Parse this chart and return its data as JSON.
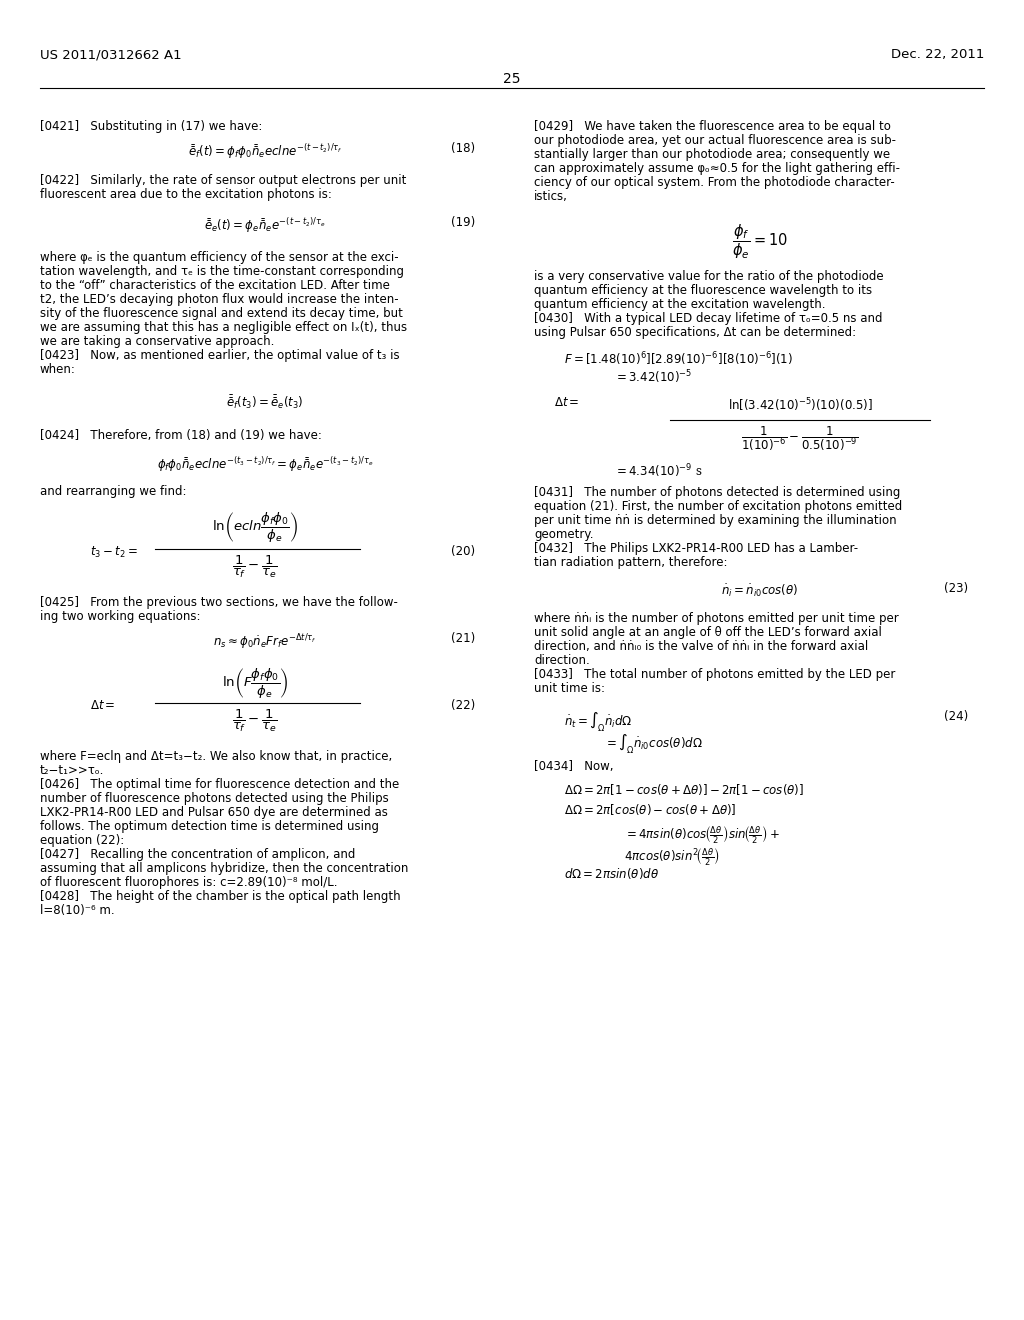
{
  "page_number": "25",
  "header_left": "US 2011/0312662 A1",
  "header_right": "Dec. 22, 2011",
  "background_color": "#ffffff",
  "text_color": "#000000",
  "font_size_body": 8.5,
  "font_size_header": 9.5
}
